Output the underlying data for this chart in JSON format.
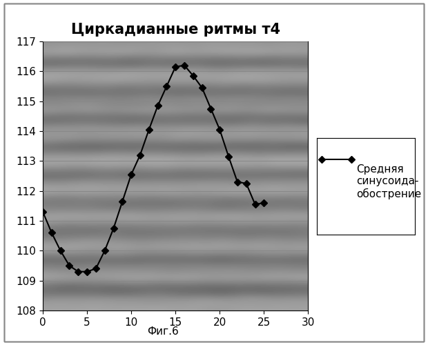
{
  "title": "Циркадианные ритмы т4",
  "caption": "Фиг.6",
  "legend_label": "Средняя\nсинусоида-\nобострение",
  "x_data": [
    0,
    1,
    2,
    3,
    4,
    5,
    6,
    7,
    8,
    9,
    10,
    11,
    12,
    13,
    14,
    15,
    16,
    17,
    18,
    19,
    20,
    21,
    22,
    23,
    24,
    25
  ],
  "y_data": [
    111.3,
    110.6,
    110.0,
    109.5,
    109.3,
    109.3,
    109.4,
    110.0,
    110.75,
    111.65,
    112.55,
    113.2,
    114.05,
    114.85,
    115.5,
    116.15,
    116.2,
    115.85,
    115.45,
    114.75,
    114.05,
    113.15,
    112.3,
    112.25,
    111.55,
    111.6
  ],
  "xlim": [
    0,
    30
  ],
  "ylim": [
    108,
    117
  ],
  "xticks": [
    0,
    5,
    10,
    15,
    20,
    25,
    30
  ],
  "yticks": [
    108,
    109,
    110,
    111,
    112,
    113,
    114,
    115,
    116,
    117
  ],
  "line_color": "#000000",
  "marker": "D",
  "marker_size": 5,
  "marker_color": "#000000",
  "title_fontsize": 15,
  "tick_fontsize": 11,
  "legend_fontsize": 11,
  "caption_fontsize": 11,
  "fig_bg": "#ffffff",
  "outer_border_color": "#888888"
}
